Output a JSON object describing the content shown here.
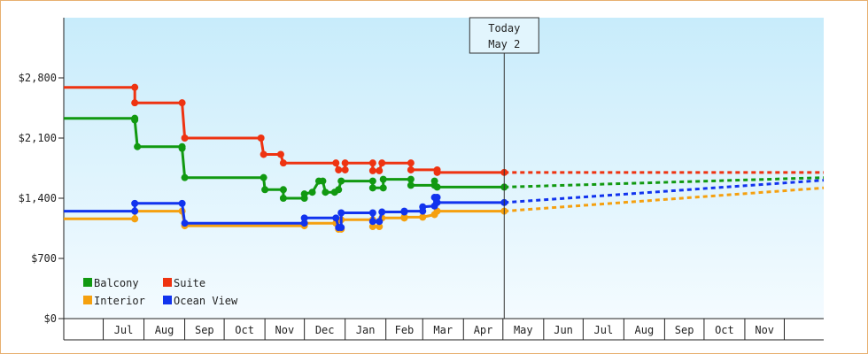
{
  "chart_data": {
    "type": "line",
    "title": "",
    "xlabel": "",
    "ylabel": "",
    "ylim": [
      0,
      3500
    ],
    "y_ticks": [
      "$0",
      "$700",
      "$1,400",
      "$2,100",
      "$2,800"
    ],
    "y_tick_values": [
      0,
      700,
      1400,
      2100,
      2800
    ],
    "x_range": [
      "2023-06-01",
      "2023-12-31"
    ],
    "x_ticks": [
      "Jul",
      "Aug",
      "Sep",
      "Oct",
      "Nov",
      "Dec",
      "Jan",
      "Feb",
      "Mar",
      "Apr",
      "May",
      "Jun",
      "Jul",
      "Aug",
      "Sep",
      "Oct",
      "Nov"
    ],
    "grid": false,
    "legend_position": "bottom-left",
    "today_marker": {
      "line1": "Today",
      "line2": "May 2",
      "date": "2023-05-02"
    },
    "series": [
      {
        "name": "Balcony",
        "color": "#119911",
        "history": [
          [
            "2022-06-01",
            2330
          ],
          [
            "2022-07-25",
            2330
          ],
          [
            "2022-07-25",
            2310
          ],
          [
            "2022-07-27",
            2000
          ],
          [
            "2022-08-30",
            2000
          ],
          [
            "2022-08-30",
            1980
          ],
          [
            "2022-09-01",
            1640
          ],
          [
            "2022-10-31",
            1640
          ],
          [
            "2022-11-01",
            1500
          ],
          [
            "2022-11-15",
            1500
          ],
          [
            "2022-11-15",
            1400
          ],
          [
            "2022-12-01",
            1400
          ],
          [
            "2022-12-01",
            1450
          ],
          [
            "2022-12-07",
            1470
          ],
          [
            "2022-12-12",
            1600
          ],
          [
            "2022-12-15",
            1600
          ],
          [
            "2022-12-17",
            1470
          ],
          [
            "2022-12-24",
            1470
          ],
          [
            "2022-12-27",
            1500
          ],
          [
            "2022-12-29",
            1600
          ],
          [
            "2023-01-22",
            1600
          ],
          [
            "2023-01-22",
            1520
          ],
          [
            "2023-01-30",
            1520
          ],
          [
            "2023-01-30",
            1620
          ],
          [
            "2023-02-20",
            1620
          ],
          [
            "2023-02-20",
            1550
          ],
          [
            "2023-03-10",
            1550
          ],
          [
            "2023-03-10",
            1600
          ],
          [
            "2023-03-12",
            1530
          ],
          [
            "2023-05-02",
            1530
          ]
        ],
        "forecast": [
          [
            "2023-05-02",
            1530
          ],
          [
            "2023-12-31",
            1640
          ]
        ]
      },
      {
        "name": "Suite",
        "color": "#ee3311",
        "history": [
          [
            "2022-06-01",
            2690
          ],
          [
            "2022-07-25",
            2690
          ],
          [
            "2022-07-25",
            2510
          ],
          [
            "2022-08-30",
            2510
          ],
          [
            "2022-09-01",
            2100
          ],
          [
            "2022-10-29",
            2100
          ],
          [
            "2022-10-31",
            1910
          ],
          [
            "2022-11-13",
            1910
          ],
          [
            "2022-11-15",
            1810
          ],
          [
            "2022-12-25",
            1810
          ],
          [
            "2022-12-27",
            1730
          ],
          [
            "2023-01-01",
            1730
          ],
          [
            "2023-01-01",
            1810
          ],
          [
            "2023-01-22",
            1810
          ],
          [
            "2023-01-22",
            1720
          ],
          [
            "2023-01-27",
            1720
          ],
          [
            "2023-01-29",
            1810
          ],
          [
            "2023-02-20",
            1810
          ],
          [
            "2023-02-20",
            1730
          ],
          [
            "2023-03-12",
            1730
          ],
          [
            "2023-03-12",
            1700
          ],
          [
            "2023-05-02",
            1700
          ]
        ],
        "forecast": [
          [
            "2023-05-02",
            1700
          ],
          [
            "2023-12-31",
            1700
          ]
        ]
      },
      {
        "name": "Interior",
        "color": "#f5a00f",
        "history": [
          [
            "2022-06-01",
            1160
          ],
          [
            "2022-07-25",
            1160
          ],
          [
            "2022-07-25",
            1250
          ],
          [
            "2022-08-30",
            1250
          ],
          [
            "2022-09-01",
            1080
          ],
          [
            "2022-12-01",
            1080
          ],
          [
            "2022-12-01",
            1110
          ],
          [
            "2022-12-25",
            1110
          ],
          [
            "2022-12-27",
            1040
          ],
          [
            "2022-12-29",
            1040
          ],
          [
            "2022-12-29",
            1150
          ],
          [
            "2023-01-22",
            1150
          ],
          [
            "2023-01-22",
            1070
          ],
          [
            "2023-01-27",
            1070
          ],
          [
            "2023-01-29",
            1170
          ],
          [
            "2023-02-15",
            1170
          ],
          [
            "2023-02-15",
            1180
          ],
          [
            "2023-03-01",
            1180
          ],
          [
            "2023-03-10",
            1210
          ],
          [
            "2023-03-12",
            1250
          ],
          [
            "2023-05-02",
            1250
          ]
        ],
        "forecast": [
          [
            "2023-05-02",
            1250
          ],
          [
            "2023-12-31",
            1520
          ]
        ]
      },
      {
        "name": "Ocean View",
        "color": "#1133ee",
        "history": [
          [
            "2022-06-01",
            1250
          ],
          [
            "2022-07-25",
            1250
          ],
          [
            "2022-07-25",
            1340
          ],
          [
            "2022-08-30",
            1340
          ],
          [
            "2022-09-01",
            1110
          ],
          [
            "2022-12-01",
            1110
          ],
          [
            "2022-12-01",
            1170
          ],
          [
            "2022-12-25",
            1170
          ],
          [
            "2022-12-27",
            1060
          ],
          [
            "2022-12-29",
            1060
          ],
          [
            "2022-12-29",
            1230
          ],
          [
            "2023-01-22",
            1230
          ],
          [
            "2023-01-22",
            1130
          ],
          [
            "2023-01-27",
            1130
          ],
          [
            "2023-01-29",
            1240
          ],
          [
            "2023-02-15",
            1240
          ],
          [
            "2023-02-15",
            1250
          ],
          [
            "2023-03-01",
            1250
          ],
          [
            "2023-03-01",
            1300
          ],
          [
            "2023-03-10",
            1310
          ],
          [
            "2023-03-10",
            1410
          ],
          [
            "2023-03-12",
            1410
          ],
          [
            "2023-03-12",
            1350
          ],
          [
            "2023-05-02",
            1350
          ]
        ],
        "forecast": [
          [
            "2023-05-02",
            1350
          ],
          [
            "2023-12-31",
            1610
          ]
        ]
      }
    ],
    "legend": [
      {
        "label": "Balcony",
        "color": "#119911"
      },
      {
        "label": "Suite",
        "color": "#ee3311"
      },
      {
        "label": "Interior",
        "color": "#f5a00f"
      },
      {
        "label": "Ocean View",
        "color": "#1133ee"
      }
    ]
  }
}
